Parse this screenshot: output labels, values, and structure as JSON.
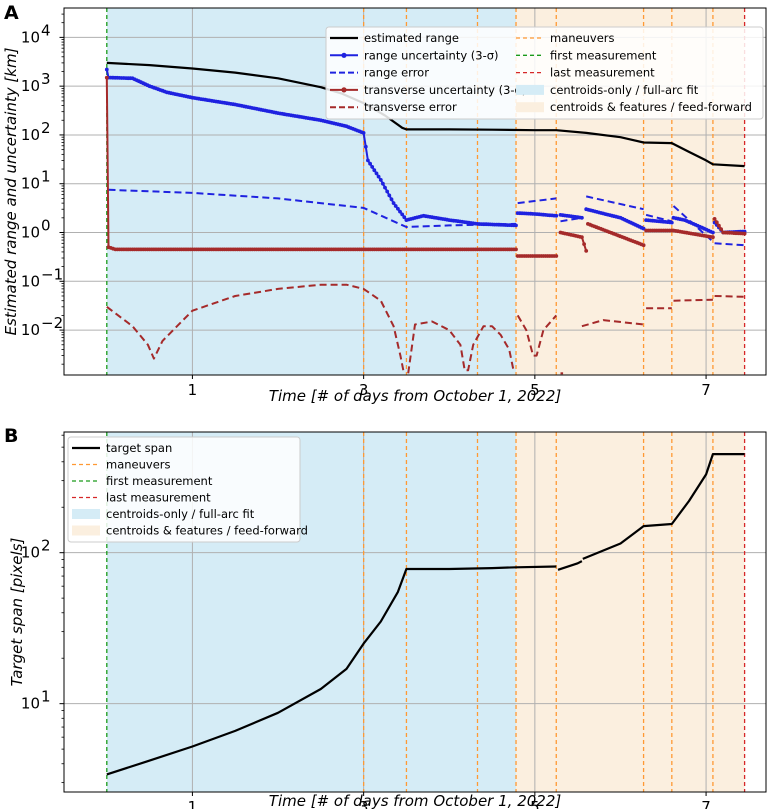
{
  "colors": {
    "black": "#000000",
    "blue": "#1f22e0",
    "brown": "#a52a2a",
    "maneuver": "#ff9933",
    "first": "#1a9a1a",
    "last": "#d62728",
    "full_arc_fill": "#d5ecf6",
    "feed_forward_fill": "#fbefdf",
    "grid": "#b0b0b0"
  },
  "chart_data": [
    {
      "panel": "A",
      "type": "line",
      "yscale": "log",
      "xlim": [
        -0.5,
        7.7
      ],
      "ylim": [
        0.0012,
        40000
      ],
      "x_ticks": [
        1,
        3,
        5,
        7
      ],
      "x_tick_labels": [
        "1",
        "3",
        "5",
        "7"
      ],
      "y_ticks": [
        0.01,
        0.1,
        1,
        10,
        100,
        1000,
        10000
      ],
      "y_tick_labels": [
        {
          "base": "10",
          "exp": "−2"
        },
        {
          "base": "10",
          "exp": "−1"
        },
        {
          "base": "10",
          "exp": "0"
        },
        {
          "base": "10",
          "exp": "1"
        },
        {
          "base": "10",
          "exp": "2"
        },
        {
          "base": "10",
          "exp": "3"
        },
        {
          "base": "10",
          "exp": "4"
        }
      ],
      "xlabel": "Time [# of days from October 1, 2022]",
      "ylabel": "Estimated range and uncertainty [km]",
      "grid": true,
      "shaded_regions": [
        {
          "label": "centroids-only / full-arc fit",
          "x0": 0,
          "x1": 4.78
        },
        {
          "label": "centroids & features / feed-forward",
          "x0": 4.78,
          "x1": 7.45
        }
      ],
      "vertical_lines": [
        {
          "label": "first measurement",
          "x": 0
        },
        {
          "label": "last measurement",
          "x": 7.45
        },
        {
          "label": "maneuvers",
          "x": [
            3.0,
            3.5,
            4.33,
            4.78,
            5.25,
            6.27,
            6.6,
            7.08
          ]
        }
      ],
      "series": [
        {
          "name": "estimated range",
          "style": "solid",
          "markers": false,
          "segments": [
            [
              [
                0,
                3000
              ],
              [
                0.5,
                2700
              ],
              [
                1,
                2300
              ],
              [
                1.5,
                1900
              ],
              [
                2,
                1450
              ],
              [
                2.5,
                950
              ],
              [
                2.75,
                700
              ],
              [
                3,
                450
              ],
              [
                3.25,
                250
              ],
              [
                3.45,
                140
              ],
              [
                3.5,
                130
              ],
              [
                4,
                130
              ],
              [
                4.5,
                128
              ],
              [
                5,
                125
              ],
              [
                5.25,
                125
              ],
              [
                5.6,
                110
              ],
              [
                6,
                90
              ],
              [
                6.27,
                70
              ],
              [
                6.6,
                68
              ],
              [
                6.8,
                45
              ],
              [
                7,
                30
              ],
              [
                7.08,
                25
              ],
              [
                7.45,
                23
              ]
            ]
          ]
        },
        {
          "name": "range uncertainty (3-σ)",
          "style": "solid",
          "markers": true,
          "segments": [
            [
              [
                0,
                2200
              ],
              [
                0.02,
                1500
              ],
              [
                0.3,
                1450
              ],
              [
                0.5,
                1000
              ],
              [
                0.7,
                750
              ],
              [
                1,
                580
              ],
              [
                1.5,
                420
              ],
              [
                2,
                280
              ],
              [
                2.5,
                200
              ],
              [
                2.8,
                150
              ],
              [
                3,
                110
              ],
              [
                3.05,
                30
              ],
              [
                3.2,
                12
              ],
              [
                3.35,
                4
              ],
              [
                3.5,
                1.8
              ],
              [
                3.7,
                2.2
              ],
              [
                4,
                1.8
              ],
              [
                4.33,
                1.5
              ],
              [
                4.78,
                1.4
              ]
            ],
            [
              [
                4.8,
                2.5
              ],
              [
                5.0,
                2.4
              ],
              [
                5.25,
                2.2
              ]
            ],
            [
              [
                5.3,
                2.3
              ],
              [
                5.55,
                2.0
              ]
            ],
            [
              [
                5.6,
                3.0
              ],
              [
                6.0,
                2.0
              ],
              [
                6.27,
                1.2
              ]
            ],
            [
              [
                6.3,
                1.8
              ],
              [
                6.6,
                1.6
              ]
            ],
            [
              [
                6.62,
                2.0
              ],
              [
                6.75,
                1.8
              ],
              [
                7.08,
                1.0
              ]
            ],
            [
              [
                7.1,
                1.6
              ],
              [
                7.2,
                1.0
              ],
              [
                7.45,
                1.05
              ]
            ]
          ]
        },
        {
          "name": "range error",
          "style": "dashed",
          "markers": false,
          "segments": [
            [
              [
                0.02,
                7.5
              ],
              [
                1,
                6.5
              ],
              [
                2,
                5
              ],
              [
                3,
                3.2
              ],
              [
                3.5,
                1.3
              ],
              [
                4,
                1.4
              ],
              [
                4.78,
                1.5
              ]
            ],
            [
              [
                4.8,
                4.0
              ],
              [
                5.25,
                5.0
              ]
            ],
            [
              [
                5.3,
                1.7
              ],
              [
                5.55,
                2.0
              ]
            ],
            [
              [
                5.6,
                5.5
              ],
              [
                6.27,
                3.0
              ]
            ],
            [
              [
                6.3,
                2.3
              ],
              [
                6.6,
                1.7
              ]
            ],
            [
              [
                6.62,
                3.5
              ],
              [
                7.08,
                0.65
              ]
            ],
            [
              [
                7.1,
                0.6
              ],
              [
                7.45,
                0.55
              ]
            ]
          ]
        },
        {
          "name": "transverse uncertainty (3-σ)",
          "style": "solid",
          "markers": true,
          "segments": [
            [
              [
                0,
                1500
              ],
              [
                0.02,
                0.5
              ],
              [
                0.1,
                0.45
              ],
              [
                2,
                0.45
              ],
              [
                4.78,
                0.45
              ]
            ],
            [
              [
                4.8,
                0.33
              ],
              [
                5.25,
                0.33
              ]
            ],
            [
              [
                5.3,
                1.0
              ],
              [
                5.55,
                0.8
              ],
              [
                5.6,
                0.42
              ]
            ],
            [
              [
                5.62,
                1.5
              ],
              [
                6.27,
                0.55
              ]
            ],
            [
              [
                6.3,
                1.1
              ],
              [
                6.6,
                1.1
              ]
            ],
            [
              [
                6.62,
                1.1
              ],
              [
                7.08,
                0.8
              ]
            ],
            [
              [
                7.1,
                1.9
              ],
              [
                7.2,
                1.0
              ],
              [
                7.45,
                0.95
              ]
            ]
          ]
        },
        {
          "name": "transverse error",
          "style": "dashed",
          "markers": false,
          "segments": [
            [
              [
                0,
                0.03
              ],
              [
                0.3,
                0.012
              ],
              [
                0.48,
                0.005
              ],
              [
                0.55,
                0.0026
              ],
              [
                0.65,
                0.006
              ],
              [
                1,
                0.025
              ],
              [
                1.5,
                0.05
              ],
              [
                2,
                0.07
              ],
              [
                2.5,
                0.085
              ],
              [
                2.8,
                0.085
              ],
              [
                3,
                0.07
              ],
              [
                3.2,
                0.04
              ],
              [
                3.35,
                0.012
              ],
              [
                3.43,
                0.003
              ],
              [
                3.47,
                0.0013
              ]
            ],
            [
              [
                3.52,
                0.0013
              ],
              [
                3.6,
                0.013
              ],
              [
                3.8,
                0.015
              ],
              [
                4.0,
                0.01
              ],
              [
                4.13,
                0.005
              ],
              [
                4.18,
                0.0015
              ],
              [
                4.22,
                0.0015
              ],
              [
                4.28,
                0.005
              ],
              [
                4.4,
                0.012
              ],
              [
                4.5,
                0.012
              ],
              [
                4.6,
                0.008
              ],
              [
                4.7,
                0.004
              ],
              [
                4.75,
                0.0015
              ]
            ],
            [
              [
                4.8,
                0.02
              ],
              [
                4.9,
                0.01
              ],
              [
                4.98,
                0.003
              ],
              [
                5.02,
                0.003
              ],
              [
                5.1,
                0.01
              ],
              [
                5.25,
                0.02
              ]
            ],
            [
              [
                5.3,
                0.0013
              ],
              [
                5.33,
                0.0013
              ]
            ],
            [
              [
                5.55,
                0.012
              ],
              [
                5.8,
                0.016
              ],
              [
                6.27,
                0.013
              ]
            ],
            [
              [
                6.3,
                0.028
              ],
              [
                6.6,
                0.028
              ]
            ],
            [
              [
                6.62,
                0.04
              ],
              [
                7.08,
                0.042
              ]
            ],
            [
              [
                7.1,
                0.05
              ],
              [
                7.45,
                0.048
              ]
            ]
          ]
        }
      ],
      "legend": {
        "location": "top-right",
        "entries": [
          {
            "label": "estimated range",
            "series": "estimated range"
          },
          {
            "label": "maneuvers",
            "series": "maneuvers"
          },
          {
            "label": "range uncertainty (3-σ)",
            "series": "range uncertainty (3-σ)"
          },
          {
            "label": "first measurement",
            "series": "first measurement"
          },
          {
            "label": "range error",
            "series": "range error"
          },
          {
            "label": "last measurement",
            "series": "last measurement"
          },
          {
            "label": "transverse uncertainty (3-σ)",
            "series": "transverse uncertainty (3-σ)"
          },
          {
            "label": "centroids-only / full-arc fit",
            "series": "centroids-only / full-arc fit"
          },
          {
            "label": "transverse error",
            "series": "transverse error"
          },
          {
            "label": "centroids & features / feed-forward",
            "series": "centroids & features / feed-forward"
          }
        ]
      }
    },
    {
      "panel": "B",
      "type": "line",
      "yscale": "log",
      "xlim": [
        -0.5,
        7.7
      ],
      "ylim": [
        2.6,
        630
      ],
      "x_ticks": [
        1,
        3,
        5,
        7
      ],
      "x_tick_labels": [
        "1",
        "3",
        "5",
        "7"
      ],
      "y_ticks": [
        10,
        100
      ],
      "y_tick_labels": [
        {
          "base": "10",
          "exp": "1"
        },
        {
          "base": "10",
          "exp": "2"
        }
      ],
      "xlabel": "Time [# of days from October 1, 2022]",
      "ylabel": "Target span [pixels]",
      "grid": true,
      "shaded_regions": [
        {
          "label": "centroids-only / full-arc fit",
          "x0": 0,
          "x1": 4.78
        },
        {
          "label": "centroids & features / feed-forward",
          "x0": 4.78,
          "x1": 7.45
        }
      ],
      "vertical_lines": [
        {
          "label": "first measurement",
          "x": 0
        },
        {
          "label": "last measurement",
          "x": 7.45
        },
        {
          "label": "maneuvers",
          "x": [
            3.0,
            3.5,
            4.33,
            4.78,
            5.25,
            6.27,
            6.6,
            7.08
          ]
        }
      ],
      "series": [
        {
          "name": "target span",
          "style": "solid",
          "markers": false,
          "segments": [
            [
              [
                0,
                3.4
              ],
              [
                0.5,
                4.2
              ],
              [
                1,
                5.2
              ],
              [
                1.5,
                6.6
              ],
              [
                2,
                8.7
              ],
              [
                2.5,
                12.5
              ],
              [
                2.8,
                17
              ],
              [
                3,
                25
              ],
              [
                3.2,
                35
              ],
              [
                3.4,
                55
              ],
              [
                3.5,
                78
              ],
              [
                4,
                78
              ],
              [
                4.5,
                79
              ],
              [
                4.78,
                80
              ],
              [
                5.25,
                81
              ]
            ],
            [
              [
                5.27,
                77
              ],
              [
                5.5,
                85
              ],
              [
                5.55,
                88
              ]
            ],
            [
              [
                5.56,
                91
              ],
              [
                6,
                115
              ],
              [
                6.27,
                150
              ],
              [
                6.6,
                155
              ],
              [
                6.8,
                220
              ],
              [
                7,
                330
              ],
              [
                7.08,
                450
              ],
              [
                7.45,
                450
              ]
            ]
          ]
        }
      ],
      "legend": {
        "location": "top-left",
        "entries": [
          {
            "label": "target span",
            "series": "target span"
          },
          {
            "label": "maneuvers",
            "series": "maneuvers"
          },
          {
            "label": "first measurement",
            "series": "first measurement"
          },
          {
            "label": "last measurement",
            "series": "last measurement"
          },
          {
            "label": "centroids-only / full-arc fit",
            "series": "centroids-only / full-arc fit"
          },
          {
            "label": "centroids & features / feed-forward",
            "series": "centroids & features / feed-forward"
          }
        ]
      }
    }
  ]
}
